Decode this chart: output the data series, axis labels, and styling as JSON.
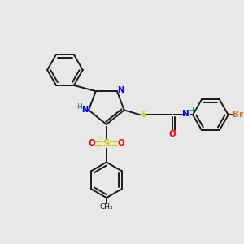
{
  "bg_color": "#e8e8e8",
  "bond_color": "#1a1a1a",
  "N_color": "#0000ff",
  "S_color": "#cccc00",
  "O_color": "#ff0000",
  "Br_color": "#cc7722",
  "H_color": "#008080",
  "C_color": "#1a1a1a",
  "lw": 1.4,
  "xlim": [
    0,
    10
  ],
  "ylim": [
    0,
    10
  ]
}
